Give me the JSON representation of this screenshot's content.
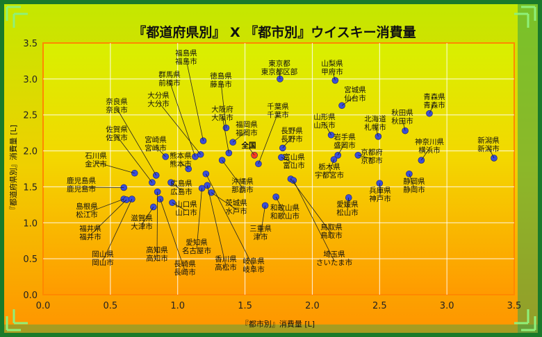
{
  "chart_data": {
    "type": "scatter",
    "title": "『都道府県別』 X 『都市別』ウイスキー消費量",
    "xlabel": "『都市別』消費量 [L]",
    "ylabel": "『都道府県別』消費量 [L]",
    "xlim": [
      0,
      3.5
    ],
    "ylim": [
      0,
      3.5
    ],
    "xticks": [
      "0.0",
      "0.5",
      "1.0",
      "1.5",
      "2.0",
      "2.5",
      "3.0",
      "3.5"
    ],
    "yticks": [
      "0.0",
      "0.5",
      "1.0",
      "1.5",
      "2.0",
      "2.5",
      "3.0",
      "3.5"
    ],
    "grid": true,
    "highlight_color": "#ff3b1f",
    "point_color": "#3a4fd8",
    "points": [
      {
        "x": 1.19,
        "y": 2.14,
        "pref": "福島県",
        "city": "福島市"
      },
      {
        "x": 1.13,
        "y": 1.92,
        "pref": "群馬県",
        "city": "前橋市"
      },
      {
        "x": 1.17,
        "y": 1.95,
        "pref": "大分県",
        "city": "大分市"
      },
      {
        "x": 1.36,
        "y": 2.32,
        "pref": "徳島県",
        "city": "藤島市"
      },
      {
        "x": 1.76,
        "y": 3.0,
        "pref": "東京都",
        "city": "東京都区部"
      },
      {
        "x": 2.17,
        "y": 2.98,
        "pref": "山梨県",
        "city": "甲府市"
      },
      {
        "x": 2.22,
        "y": 2.63,
        "pref": "宮城県",
        "city": "仙台市"
      },
      {
        "x": 2.87,
        "y": 2.52,
        "pref": "青森県",
        "city": "青森市"
      },
      {
        "x": 2.69,
        "y": 2.28,
        "pref": "秋田県",
        "city": "秋田市"
      },
      {
        "x": 2.49,
        "y": 2.2,
        "pref": "北海道",
        "city": "札幌市"
      },
      {
        "x": 3.35,
        "y": 1.9,
        "pref": "新潟県",
        "city": "新潟市"
      },
      {
        "x": 2.81,
        "y": 1.87,
        "pref": "神奈川県",
        "city": "横浜市"
      },
      {
        "x": 1.38,
        "y": 1.97,
        "pref": "大阪府",
        "city": "大阪市"
      },
      {
        "x": 1.41,
        "y": 2.12,
        "pref": "福岡県",
        "city": "福岡市"
      },
      {
        "x": 1.78,
        "y": 2.04,
        "pref": "長野県",
        "city": "長野市"
      },
      {
        "x": 1.6,
        "y": 1.82,
        "pref": "千葉県",
        "city": "千葉市"
      },
      {
        "x": 1.57,
        "y": 1.94,
        "pref": "全国",
        "city": "",
        "highlight": true
      },
      {
        "x": 2.14,
        "y": 2.22,
        "pref": "山形県",
        "city": "山形市"
      },
      {
        "x": 2.19,
        "y": 1.94,
        "pref": "岩手県",
        "city": "盛岡市"
      },
      {
        "x": 2.16,
        "y": 1.88,
        "pref": "栃木県",
        "city": "宇都宮市"
      },
      {
        "x": 2.34,
        "y": 1.94,
        "pref": "京都府",
        "city": "京都市"
      },
      {
        "x": 1.77,
        "y": 1.91,
        "pref": "富山県",
        "city": "富山市"
      },
      {
        "x": 2.72,
        "y": 1.68,
        "pref": "静岡県",
        "city": "静岡市"
      },
      {
        "x": 2.5,
        "y": 1.55,
        "pref": "兵庫県",
        "city": "神戸市"
      },
      {
        "x": 1.84,
        "y": 1.61,
        "pref": "鳥取県",
        "city": "鳥取市"
      },
      {
        "x": 1.86,
        "y": 1.59,
        "pref": "埼玉県",
        "city": "さいたま市"
      },
      {
        "x": 2.27,
        "y": 1.35,
        "pref": "愛媛県",
        "city": "松山市"
      },
      {
        "x": 1.73,
        "y": 1.36,
        "pref": "和歌山県",
        "city": "和歌山市"
      },
      {
        "x": 1.65,
        "y": 1.24,
        "pref": "三重県",
        "city": "津市"
      },
      {
        "x": 1.33,
        "y": 1.87,
        "pref": "沖縄県",
        "city": "那覇市"
      },
      {
        "x": 1.25,
        "y": 1.42,
        "pref": "茨城県",
        "city": "水戸市"
      },
      {
        "x": 0.84,
        "y": 1.66,
        "pref": "奈良県",
        "city": "奈良市"
      },
      {
        "x": 0.81,
        "y": 1.56,
        "pref": "佐賀県",
        "city": "佐賀市"
      },
      {
        "x": 0.91,
        "y": 1.92,
        "pref": "宮崎県",
        "city": "宮崎市"
      },
      {
        "x": 1.08,
        "y": 1.75,
        "pref": "熊本県",
        "city": "熊本市"
      },
      {
        "x": 0.68,
        "y": 1.69,
        "pref": "石川県",
        "city": "金沢市"
      },
      {
        "x": 0.6,
        "y": 1.49,
        "pref": "鹿児島県",
        "city": "鹿児島市"
      },
      {
        "x": 0.6,
        "y": 1.33,
        "pref": "島根県",
        "city": "松江市"
      },
      {
        "x": 0.62,
        "y": 1.32,
        "pref": "福井県",
        "city": "福井市"
      },
      {
        "x": 0.66,
        "y": 1.33,
        "pref": "岡山県",
        "city": "岡山市"
      },
      {
        "x": 0.95,
        "y": 1.56,
        "pref": "広島県",
        "city": "広島市"
      },
      {
        "x": 0.96,
        "y": 1.28,
        "pref": "山口県",
        "city": "山口市"
      },
      {
        "x": 0.82,
        "y": 1.22,
        "pref": "滋賀県",
        "city": "大津市"
      },
      {
        "x": 0.85,
        "y": 1.43,
        "pref": "高知県",
        "city": "高知市"
      },
      {
        "x": 0.87,
        "y": 1.33,
        "pref": "長崎県",
        "city": "長崎市"
      },
      {
        "x": 1.18,
        "y": 1.48,
        "pref": "愛知県",
        "city": "名古屋市"
      },
      {
        "x": 1.22,
        "y": 1.52,
        "pref": "香川県",
        "city": "高松市"
      },
      {
        "x": 1.21,
        "y": 1.68,
        "pref": "岐阜県",
        "city": "岐阜市"
      }
    ]
  }
}
